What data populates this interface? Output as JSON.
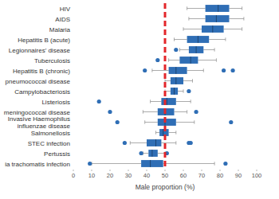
{
  "chart_data": {
    "type": "boxplot",
    "orientation": "horizontal",
    "x_label": "Male proportion (%)",
    "color": "#2f6eb5",
    "grid": false,
    "xlim": [
      0,
      100
    ],
    "xticks": [
      0,
      10,
      20,
      30,
      40,
      50,
      60,
      70,
      80,
      90,
      100
    ],
    "reference_line": {
      "value": 50,
      "color": "#e3262a"
    },
    "categories": [
      "HIV",
      "AIDS",
      "Malaria",
      "Hepatitis B (acute)",
      "Legionnaires' disease",
      "Tuberculosis",
      "Hepatitis B (chronic)",
      "pneumococcal disease",
      "Campylobacteriosis",
      "Listeriosis",
      "meningococcal disease",
      "Invasive Haemophilus\ninfluenzae disease",
      "Salmonellosis",
      "STEC infection",
      "Pertussis",
      "ia trachomatis infection"
    ],
    "boxes": [
      {
        "min": 62,
        "q1": 72,
        "median": 79,
        "q3": 85,
        "max": 92,
        "outliers": []
      },
      {
        "min": 63,
        "q1": 72,
        "median": 78,
        "q3": 85,
        "max": 93,
        "outliers": []
      },
      {
        "min": 60,
        "q1": 70,
        "median": 76,
        "q3": 82,
        "max": 92,
        "outliers": []
      },
      {
        "min": 55,
        "q1": 62,
        "median": 68,
        "q3": 74,
        "max": 83,
        "outliers": []
      },
      {
        "min": 58,
        "q1": 63,
        "median": 67,
        "q3": 71,
        "max": 77,
        "outliers": [
          56
        ]
      },
      {
        "min": 52,
        "q1": 58,
        "median": 64,
        "q3": 68,
        "max": 78,
        "outliers": [
          46
        ]
      },
      {
        "min": 43,
        "q1": 52,
        "median": 56,
        "q3": 62,
        "max": 71,
        "outliers": [
          39,
          82,
          87
        ]
      },
      {
        "min": 50,
        "q1": 53,
        "median": 56,
        "q3": 60,
        "max": 65,
        "outliers": []
      },
      {
        "min": 50,
        "q1": 53,
        "median": 55,
        "q3": 57,
        "max": 60,
        "outliers": [
          63
        ]
      },
      {
        "min": 42,
        "q1": 48,
        "median": 51,
        "q3": 56,
        "max": 64,
        "outliers": [
          14
        ]
      },
      {
        "min": 38,
        "q1": 46,
        "median": 50,
        "q3": 55,
        "max": 62,
        "outliers": [
          20,
          67
        ]
      },
      {
        "min": 39,
        "q1": 46,
        "median": 50,
        "q3": 56,
        "max": 66,
        "outliers": [
          24,
          86
        ]
      },
      {
        "min": 45,
        "q1": 47,
        "median": 49,
        "q3": 52,
        "max": 56,
        "outliers": []
      },
      {
        "min": 31,
        "q1": 40,
        "median": 45,
        "q3": 48,
        "max": 56,
        "outliers": [
          28,
          63,
          64
        ]
      },
      {
        "min": 38,
        "q1": 41,
        "median": 43,
        "q3": 46,
        "max": 50,
        "outliers": [
          37,
          51
        ]
      },
      {
        "min": 10,
        "q1": 37,
        "median": 42,
        "q3": 49,
        "max": 77,
        "outliers": [
          9,
          83
        ]
      }
    ]
  }
}
